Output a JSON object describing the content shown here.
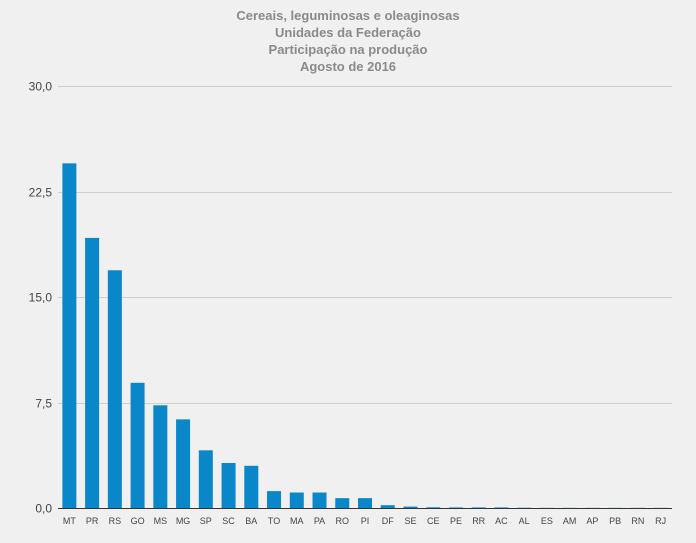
{
  "chart_data": {
    "type": "bar",
    "title_lines": [
      "Cereais, leguminosas e oleaginosas",
      "Unidades da Federação",
      "Participação na produção",
      "Agosto de 2016"
    ],
    "xlabel": "",
    "ylabel": "",
    "ylim": [
      0,
      30
    ],
    "yticks": [
      "0,0",
      "7,5",
      "15,0",
      "22,5",
      "30,0"
    ],
    "ytick_values": [
      0,
      7.5,
      15,
      22.5,
      30
    ],
    "grid": true,
    "legend": "none",
    "bar_color": "#0a87c8",
    "categories": [
      "MT",
      "PR",
      "RS",
      "GO",
      "MS",
      "MG",
      "SP",
      "SC",
      "BA",
      "TO",
      "MA",
      "PA",
      "RO",
      "PI",
      "DF",
      "SE",
      "CE",
      "PE",
      "RR",
      "AC",
      "AL",
      "ES",
      "AM",
      "AP",
      "PB",
      "RN",
      "RJ"
    ],
    "values": [
      24.5,
      19.2,
      16.9,
      8.9,
      7.3,
      6.3,
      4.1,
      3.2,
      3.0,
      1.2,
      1.1,
      1.1,
      0.7,
      0.7,
      0.2,
      0.1,
      0.05,
      0.04,
      0.04,
      0.04,
      0.02,
      0.01,
      0.01,
      0.01,
      0.01,
      0.01,
      0.01
    ]
  }
}
